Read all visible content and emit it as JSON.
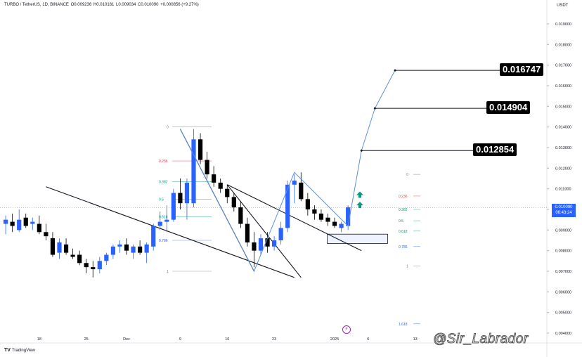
{
  "header": {
    "symbol": "TURBO / TetherUS, 1D, BINANCE",
    "open": "O0.009236",
    "high": "H0.010181",
    "low": "L0.009034",
    "close": "C0.010090",
    "change": "+0.000856 (+9.27%)"
  },
  "currency": "USDT",
  "price_tag": {
    "price": "0.010090",
    "countdown": "06:43:24"
  },
  "targets": [
    "0.016747",
    "0.014904",
    "0.012854"
  ],
  "footer": {
    "logo": "TradingView"
  },
  "watermark": "@Sir_Labrador",
  "colors": {
    "up": "#2962ff",
    "down": "#000000",
    "line": "#131722",
    "projection": "#5b8fd9",
    "fib_red": "#f23645",
    "fib_green": "#089981",
    "fib_blue": "#2962ff",
    "arrow": "#089981"
  },
  "chart_data": {
    "type": "candlestick",
    "y_axis": {
      "min": 0.004,
      "max": 0.019,
      "step": 0.001,
      "labels": [
        "0.019000",
        "0.018000",
        "0.017000",
        "0.016000",
        "0.015000",
        "0.014000",
        "0.013000",
        "0.012000",
        "0.011000",
        "0.010000",
        "0.009000",
        "0.008000",
        "0.007000",
        "0.006000",
        "0.005000",
        "0.004000"
      ]
    },
    "x_axis": {
      "labels": [
        {
          "label": "18",
          "day": -13
        },
        {
          "label": "25",
          "day": -6
        },
        {
          "label": "Dec",
          "day": 0
        },
        {
          "label": "9",
          "day": 8
        },
        {
          "label": "16",
          "day": 15
        },
        {
          "label": "23",
          "day": 22
        },
        {
          "label": "2025",
          "day": 31
        },
        {
          "label": "6",
          "day": 36
        },
        {
          "label": "13",
          "day": 43
        },
        {
          "label": "17",
          "day": 47
        }
      ]
    },
    "candles": [
      {
        "d": -18,
        "o": 0.0093,
        "h": 0.0097,
        "l": 0.0088,
        "c": 0.0095
      },
      {
        "d": -17,
        "o": 0.0094,
        "h": 0.0098,
        "l": 0.0089,
        "c": 0.0092
      },
      {
        "d": -16,
        "o": 0.009,
        "h": 0.01,
        "l": 0.0089,
        "c": 0.0095
      },
      {
        "d": -15,
        "o": 0.0096,
        "h": 0.0098,
        "l": 0.0091,
        "c": 0.0092
      },
      {
        "d": -14,
        "o": 0.0093,
        "h": 0.0096,
        "l": 0.009,
        "c": 0.0094
      },
      {
        "d": -13,
        "o": 0.0093,
        "h": 0.0097,
        "l": 0.0088,
        "c": 0.0089
      },
      {
        "d": -12,
        "o": 0.0089,
        "h": 0.0093,
        "l": 0.0085,
        "c": 0.0087
      },
      {
        "d": -11,
        "o": 0.0086,
        "h": 0.0089,
        "l": 0.0077,
        "c": 0.0078
      },
      {
        "d": -10,
        "o": 0.0079,
        "h": 0.0086,
        "l": 0.0076,
        "c": 0.0084
      },
      {
        "d": -9,
        "o": 0.0083,
        "h": 0.0086,
        "l": 0.0078,
        "c": 0.0079
      },
      {
        "d": -8,
        "o": 0.0078,
        "h": 0.0081,
        "l": 0.0076,
        "c": 0.0077
      },
      {
        "d": -7,
        "o": 0.0078,
        "h": 0.008,
        "l": 0.0073,
        "c": 0.0074
      },
      {
        "d": -6,
        "o": 0.0074,
        "h": 0.0076,
        "l": 0.0069,
        "c": 0.0072
      },
      {
        "d": -5,
        "o": 0.0072,
        "h": 0.0075,
        "l": 0.0067,
        "c": 0.0071
      },
      {
        "d": -4,
        "o": 0.0071,
        "h": 0.0077,
        "l": 0.0069,
        "c": 0.0075
      },
      {
        "d": -3,
        "o": 0.0075,
        "h": 0.0079,
        "l": 0.0073,
        "c": 0.0078
      },
      {
        "d": -2,
        "o": 0.0078,
        "h": 0.0083,
        "l": 0.0076,
        "c": 0.0082
      },
      {
        "d": -1,
        "o": 0.0082,
        "h": 0.0085,
        "l": 0.0079,
        "c": 0.0083
      },
      {
        "d": 0,
        "o": 0.0083,
        "h": 0.0086,
        "l": 0.0078,
        "c": 0.008
      },
      {
        "d": 1,
        "o": 0.0079,
        "h": 0.0083,
        "l": 0.0076,
        "c": 0.0082
      },
      {
        "d": 2,
        "o": 0.0082,
        "h": 0.0085,
        "l": 0.0078,
        "c": 0.0079
      },
      {
        "d": 3,
        "o": 0.0079,
        "h": 0.0084,
        "l": 0.0074,
        "c": 0.0083
      },
      {
        "d": 4,
        "o": 0.0082,
        "h": 0.0093,
        "l": 0.008,
        "c": 0.0092
      },
      {
        "d": 5,
        "o": 0.0092,
        "h": 0.0099,
        "l": 0.009,
        "c": 0.0094
      },
      {
        "d": 6,
        "o": 0.0094,
        "h": 0.0102,
        "l": 0.0089,
        "c": 0.0095
      },
      {
        "d": 7,
        "o": 0.0095,
        "h": 0.011,
        "l": 0.0094,
        "c": 0.0108
      },
      {
        "d": 8,
        "o": 0.0108,
        "h": 0.0115,
        "l": 0.01,
        "c": 0.0103
      },
      {
        "d": 9,
        "o": 0.0103,
        "h": 0.0115,
        "l": 0.0095,
        "c": 0.0113
      },
      {
        "d": 10,
        "o": 0.0103,
        "h": 0.0139,
        "l": 0.0101,
        "c": 0.0134
      },
      {
        "d": 11,
        "o": 0.0134,
        "h": 0.0137,
        "l": 0.0122,
        "c": 0.0124
      },
      {
        "d": 12,
        "o": 0.0124,
        "h": 0.0128,
        "l": 0.0115,
        "c": 0.0117
      },
      {
        "d": 13,
        "o": 0.0117,
        "h": 0.0121,
        "l": 0.0111,
        "c": 0.0113
      },
      {
        "d": 14,
        "o": 0.0113,
        "h": 0.0115,
        "l": 0.0108,
        "c": 0.011
      },
      {
        "d": 15,
        "o": 0.011,
        "h": 0.0112,
        "l": 0.0103,
        "c": 0.0106
      },
      {
        "d": 16,
        "o": 0.0106,
        "h": 0.0108,
        "l": 0.0099,
        "c": 0.0101
      },
      {
        "d": 17,
        "o": 0.0101,
        "h": 0.0104,
        "l": 0.0091,
        "c": 0.0093
      },
      {
        "d": 18,
        "o": 0.0093,
        "h": 0.0096,
        "l": 0.0082,
        "c": 0.0084
      },
      {
        "d": 19,
        "o": 0.0084,
        "h": 0.0089,
        "l": 0.0072,
        "c": 0.008
      },
      {
        "d": 20,
        "o": 0.008,
        "h": 0.0088,
        "l": 0.0078,
        "c": 0.0086
      },
      {
        "d": 21,
        "o": 0.0086,
        "h": 0.0089,
        "l": 0.0079,
        "c": 0.0082
      },
      {
        "d": 22,
        "o": 0.0082,
        "h": 0.0087,
        "l": 0.008,
        "c": 0.0085
      },
      {
        "d": 23,
        "o": 0.0085,
        "h": 0.0094,
        "l": 0.0083,
        "c": 0.0091
      },
      {
        "d": 24,
        "o": 0.0091,
        "h": 0.0114,
        "l": 0.0089,
        "c": 0.0112
      },
      {
        "d": 25,
        "o": 0.0112,
        "h": 0.0117,
        "l": 0.0103,
        "c": 0.0114
      },
      {
        "d": 26,
        "o": 0.0113,
        "h": 0.0118,
        "l": 0.0104,
        "c": 0.0105
      },
      {
        "d": 27,
        "o": 0.0105,
        "h": 0.0108,
        "l": 0.0097,
        "c": 0.01
      },
      {
        "d": 28,
        "o": 0.01,
        "h": 0.0102,
        "l": 0.0095,
        "c": 0.0098
      },
      {
        "d": 29,
        "o": 0.0098,
        "h": 0.01,
        "l": 0.0094,
        "c": 0.0095
      },
      {
        "d": 30,
        "o": 0.0096,
        "h": 0.0098,
        "l": 0.0092,
        "c": 0.0094
      },
      {
        "d": 31,
        "o": 0.0094,
        "h": 0.0096,
        "l": 0.0091,
        "c": 0.0092
      },
      {
        "d": 32,
        "o": 0.0091,
        "h": 0.0094,
        "l": 0.0089,
        "c": 0.0093
      },
      {
        "d": 33,
        "o": 0.0092,
        "h": 0.0102,
        "l": 0.009,
        "c": 0.0101
      }
    ],
    "fib_levels": [
      {
        "label": "0",
        "price": 0.014,
        "color": "#787b86"
      },
      {
        "label": "0.236",
        "price": 0.01235,
        "color": "#f23645"
      },
      {
        "label": "0.382",
        "price": 0.01135,
        "color": "#089981"
      },
      {
        "label": "0.5",
        "price": 0.0105,
        "color": "#089981"
      },
      {
        "label": "0.618",
        "price": 0.00965,
        "color": "#089981"
      },
      {
        "label": "0.786",
        "price": 0.0085,
        "color": "#2962ff"
      },
      {
        "label": "1",
        "price": 0.007,
        "color": "#787b86"
      }
    ],
    "fib_levels_right": [
      {
        "label": "0",
        "price": 0.0117,
        "color": "#787b86"
      },
      {
        "label": "0.236",
        "price": 0.01065,
        "color": "#f23645"
      },
      {
        "label": "0.382",
        "price": 0.01,
        "color": "#089981"
      },
      {
        "label": "0.5",
        "price": 0.00945,
        "color": "#089981"
      },
      {
        "label": "0.618",
        "price": 0.00895,
        "color": "#089981"
      },
      {
        "label": "0.786",
        "price": 0.0082,
        "color": "#2962ff"
      },
      {
        "label": "1",
        "price": 0.00725,
        "color": "#787b86"
      },
      {
        "label": "1.618",
        "price": 0.00445,
        "color": "#2962ff"
      }
    ],
    "trendlines": [
      {
        "from": {
          "d": -12,
          "p": 0.0111
        },
        "to": {
          "d": 25,
          "p": 0.0067
        }
      },
      {
        "from": {
          "d": 15,
          "p": 0.0112
        },
        "to": {
          "d": 35,
          "p": 0.008
        }
      },
      {
        "from": {
          "d": 15,
          "p": 0.0112
        },
        "to": {
          "d": 26,
          "p": 0.0067
        }
      },
      {
        "from": {
          "d": 8,
          "p": 0.0139
        },
        "to": {
          "d": 19,
          "p": 0.007
        }
      }
    ],
    "projection": [
      {
        "d": 8,
        "p": 0.0139
      },
      {
        "d": 19,
        "p": 0.007
      },
      {
        "d": 25,
        "p": 0.0118
      },
      {
        "d": 33,
        "p": 0.0092
      },
      {
        "d": 35,
        "p": 0.01285
      },
      {
        "d": 37,
        "p": 0.0149
      },
      {
        "d": 40,
        "p": 0.01675
      }
    ],
    "target_levels": [
      {
        "label": "0.016747",
        "price": 0.016747
      },
      {
        "label": "0.014904",
        "price": 0.014904
      },
      {
        "label": "0.012854",
        "price": 0.012854
      }
    ],
    "zone": {
      "d1": 30,
      "d2": 39,
      "p1": 0.0088,
      "p2": 0.00835
    },
    "current_price": 0.01009
  }
}
